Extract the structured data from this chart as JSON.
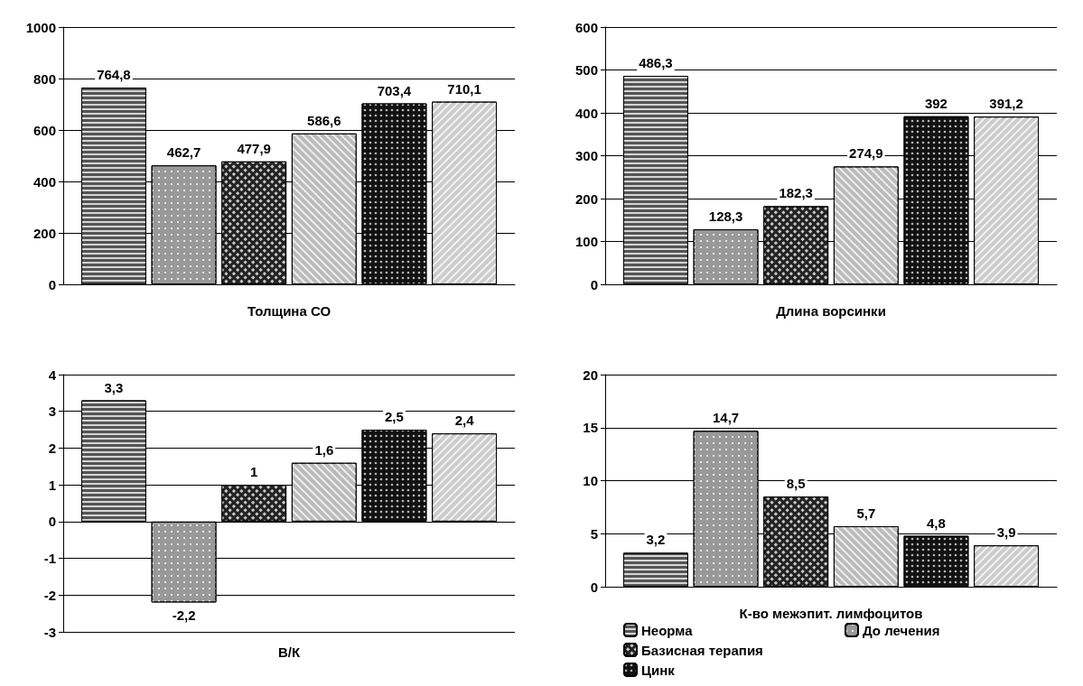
{
  "chart_data": [
    {
      "type": "bar",
      "xlabel": "Толщина СО",
      "categories": [
        null
      ],
      "series": [
        {
          "color": "#555555",
          "values": [
            764.8
          ],
          "value_labels": [
            "764,8"
          ]
        },
        {
          "color": "#999999",
          "values": [
            462.7
          ],
          "value_labels": [
            "462,7"
          ]
        },
        {
          "color": "#222222",
          "values": [
            477.9
          ],
          "value_labels": [
            "477,9"
          ]
        },
        {
          "color": "#bbbbbb",
          "values": [
            586.6
          ],
          "value_labels": [
            "586,6"
          ]
        },
        {
          "color": "#111111",
          "values": [
            703.4
          ],
          "value_labels": [
            "703,4"
          ]
        },
        {
          "color": "#cccccc",
          "values": [
            710.1
          ],
          "value_labels": [
            "710,1"
          ]
        }
      ],
      "ylim": [
        0,
        1000
      ],
      "yticks": [
        0,
        200,
        400,
        600,
        800,
        1000
      ],
      "grid": "y",
      "legend": false
    },
    {
      "type": "bar",
      "xlabel": "Длина ворсинки",
      "categories": [
        null
      ],
      "series": [
        {
          "color": "#555555",
          "values": [
            486.3
          ],
          "value_labels": [
            "486,3"
          ]
        },
        {
          "color": "#999999",
          "values": [
            128.3
          ],
          "value_labels": [
            "128,3"
          ]
        },
        {
          "color": "#222222",
          "values": [
            182.3
          ],
          "value_labels": [
            "182,3"
          ]
        },
        {
          "color": "#bbbbbb",
          "values": [
            274.9
          ],
          "value_labels": [
            "274,9"
          ]
        },
        {
          "color": "#111111",
          "values": [
            392
          ],
          "value_labels": [
            "392"
          ]
        },
        {
          "color": "#cccccc",
          "values": [
            391.2
          ],
          "value_labels": [
            "391,2"
          ]
        }
      ],
      "ylim": [
        0,
        600
      ],
      "yticks": [
        0,
        100,
        200,
        300,
        400,
        500,
        600
      ],
      "grid": "y",
      "legend": false
    },
    {
      "type": "bar",
      "xlabel": "В/К",
      "categories": [
        null
      ],
      "series": [
        {
          "color": "#555555",
          "values": [
            3.3
          ],
          "value_labels": [
            "3,3"
          ]
        },
        {
          "color": "#999999",
          "values": [
            -2.2
          ],
          "value_labels": [
            "-2,2"
          ]
        },
        {
          "color": "#222222",
          "values": [
            1
          ],
          "value_labels": [
            "1"
          ]
        },
        {
          "color": "#bbbbbb",
          "values": [
            1.6
          ],
          "value_labels": [
            "1,6"
          ]
        },
        {
          "color": "#111111",
          "values": [
            2.5
          ],
          "value_labels": [
            "2,5"
          ]
        },
        {
          "color": "#cccccc",
          "values": [
            2.4
          ],
          "value_labels": [
            "2,4"
          ]
        }
      ],
      "ylim": [
        -3,
        4
      ],
      "yticks": [
        -3,
        -2,
        -1,
        0,
        1,
        2,
        3,
        4
      ],
      "grid": "y",
      "legend": false
    },
    {
      "type": "bar",
      "xlabel": "К-во межэпит. лимфоцитов",
      "categories": [
        null
      ],
      "series": [
        {
          "name": "Неорма",
          "color": "#555555",
          "values": [
            3.2
          ],
          "value_labels": [
            "3,2"
          ]
        },
        {
          "name": "До лечения",
          "color": "#999999",
          "values": [
            14.7
          ],
          "value_labels": [
            "14,7"
          ]
        },
        {
          "name": "Базисная терапия",
          "color": "#222222",
          "values": [
            8.5
          ],
          "value_labels": [
            "8,5"
          ]
        },
        {
          "color": "#bbbbbb",
          "values": [
            5.7
          ],
          "value_labels": [
            "5,7"
          ]
        },
        {
          "name": "Цинк",
          "color": "#111111",
          "values": [
            4.8
          ],
          "value_labels": [
            "4,8"
          ]
        },
        {
          "color": "#cccccc",
          "values": [
            3.9
          ],
          "value_labels": [
            "3,9"
          ]
        }
      ],
      "ylim": [
        0,
        20
      ],
      "yticks": [
        0,
        5,
        10,
        15,
        20
      ],
      "grid": "y",
      "legend": "bottom"
    }
  ]
}
